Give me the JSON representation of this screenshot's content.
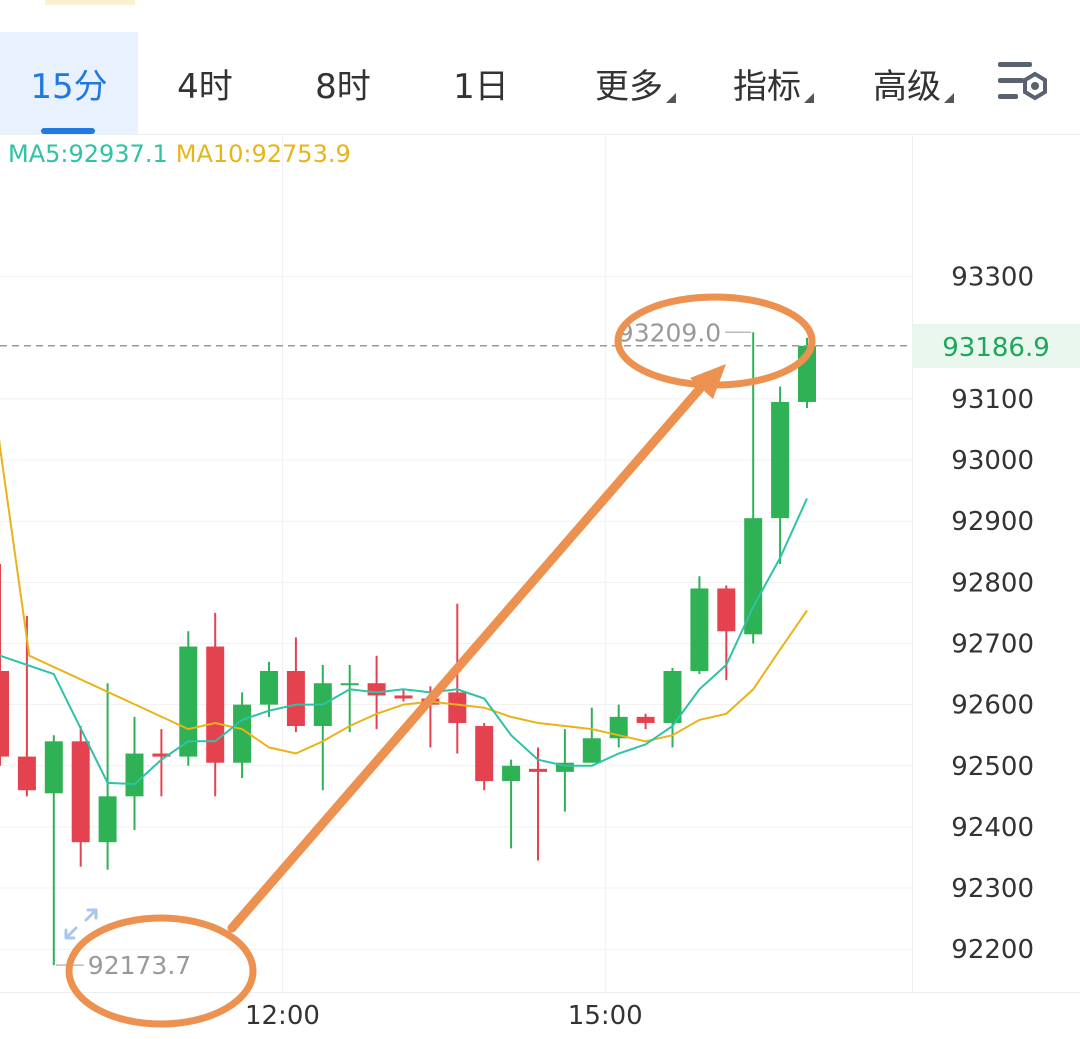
{
  "toolbar": {
    "tabs": [
      {
        "label": "15分",
        "active": true,
        "dropdown": false
      },
      {
        "label": "4时",
        "active": false,
        "dropdown": false
      },
      {
        "label": "8时",
        "active": false,
        "dropdown": false
      },
      {
        "label": "1日",
        "active": false,
        "dropdown": false
      },
      {
        "label": "更多",
        "active": false,
        "dropdown": true
      },
      {
        "label": "指标",
        "active": false,
        "dropdown": true
      },
      {
        "label": "高级",
        "active": false,
        "dropdown": true
      }
    ],
    "settings_icon": "chart-settings-icon"
  },
  "legend": {
    "ma5": "MA5:92937.1",
    "ma10": "MA10:92753.9"
  },
  "colors": {
    "up": "#2fb156",
    "down": "#e5424f",
    "ma5": "#2ec2a6",
    "ma10": "#e8b41a",
    "accent": "#1f7ae0",
    "annotation": "#ec914f"
  },
  "chart_data": {
    "type": "candlestick",
    "ylim": [
      92130,
      93530
    ],
    "y_ticks": [
      93300,
      93100,
      93000,
      92900,
      92800,
      92700,
      92600,
      92500,
      92400,
      92300,
      92200
    ],
    "x_labels": [
      {
        "index": 10.5,
        "label": "12:00"
      },
      {
        "index": 22.5,
        "label": "15:00"
      }
    ],
    "candles": [
      {
        "o": 92655,
        "h": 92830,
        "l": 92500,
        "c": 92515
      },
      {
        "o": 92515,
        "h": 92745,
        "l": 92450,
        "c": 92460
      },
      {
        "o": 92455,
        "h": 92550,
        "l": 92174,
        "c": 92540
      },
      {
        "o": 92540,
        "h": 92565,
        "l": 92335,
        "c": 92375
      },
      {
        "o": 92375,
        "h": 92635,
        "l": 92330,
        "c": 92450
      },
      {
        "o": 92450,
        "h": 92580,
        "l": 92395,
        "c": 92520
      },
      {
        "o": 92520,
        "h": 92560,
        "l": 92450,
        "c": 92515
      },
      {
        "o": 92515,
        "h": 92720,
        "l": 92500,
        "c": 92695
      },
      {
        "o": 92695,
        "h": 92750,
        "l": 92450,
        "c": 92505
      },
      {
        "o": 92505,
        "h": 92620,
        "l": 92480,
        "c": 92600
      },
      {
        "o": 92600,
        "h": 92670,
        "l": 92580,
        "c": 92655
      },
      {
        "o": 92655,
        "h": 92710,
        "l": 92555,
        "c": 92565
      },
      {
        "o": 92565,
        "h": 92665,
        "l": 92460,
        "c": 92635
      },
      {
        "o": 92635,
        "h": 92665,
        "l": 92555,
        "c": 92635
      },
      {
        "o": 92635,
        "h": 92680,
        "l": 92560,
        "c": 92615
      },
      {
        "o": 92615,
        "h": 92625,
        "l": 92605,
        "c": 92610
      },
      {
        "o": 92610,
        "h": 92630,
        "l": 92530,
        "c": 92600
      },
      {
        "o": 92620,
        "h": 92765,
        "l": 92520,
        "c": 92570
      },
      {
        "o": 92565,
        "h": 92570,
        "l": 92460,
        "c": 92475
      },
      {
        "o": 92475,
        "h": 92510,
        "l": 92365,
        "c": 92500
      },
      {
        "o": 92495,
        "h": 92530,
        "l": 92345,
        "c": 92490
      },
      {
        "o": 92490,
        "h": 92560,
        "l": 92425,
        "c": 92505
      },
      {
        "o": 92505,
        "h": 92595,
        "l": 92505,
        "c": 92545
      },
      {
        "o": 92545,
        "h": 92600,
        "l": 92530,
        "c": 92580
      },
      {
        "o": 92580,
        "h": 92585,
        "l": 92560,
        "c": 92570
      },
      {
        "o": 92570,
        "h": 92660,
        "l": 92530,
        "c": 92655
      },
      {
        "o": 92655,
        "h": 92810,
        "l": 92650,
        "c": 92790
      },
      {
        "o": 92790,
        "h": 92795,
        "l": 92640,
        "c": 92720
      },
      {
        "o": 92715,
        "h": 93209,
        "l": 92700,
        "c": 92905
      },
      {
        "o": 92905,
        "h": 93120,
        "l": 92830,
        "c": 93095
      },
      {
        "o": 93095,
        "h": 93200,
        "l": 93085,
        "c": 93186.9
      }
    ],
    "ma5": [
      null,
      null,
      null,
      null,
      92472,
      92470,
      92510,
      92540,
      92540,
      92575,
      92590,
      92600,
      92600,
      92625,
      92620,
      92625,
      92620,
      92625,
      92610,
      92550,
      92510,
      92500,
      92500,
      92520,
      92535,
      92565,
      92625,
      92665,
      92760,
      92840,
      92937.1
    ],
    "ma10": [
      null,
      null,
      null,
      null,
      null,
      null,
      null,
      92560,
      92570,
      92560,
      92530,
      92520,
      92540,
      92565,
      92585,
      92600,
      92605,
      92600,
      92595,
      92580,
      92570,
      92565,
      92560,
      92550,
      92540,
      92550,
      92575,
      92585,
      92625,
      92690,
      92753.9
    ],
    "ma10_lead_in": [
      93380,
      93015,
      92680
    ],
    "high_label": "93209.0",
    "low_label": "92173.7",
    "last_price": "93186.9",
    "last_value": 93186.9,
    "high_index": 28,
    "low_index": 2
  }
}
